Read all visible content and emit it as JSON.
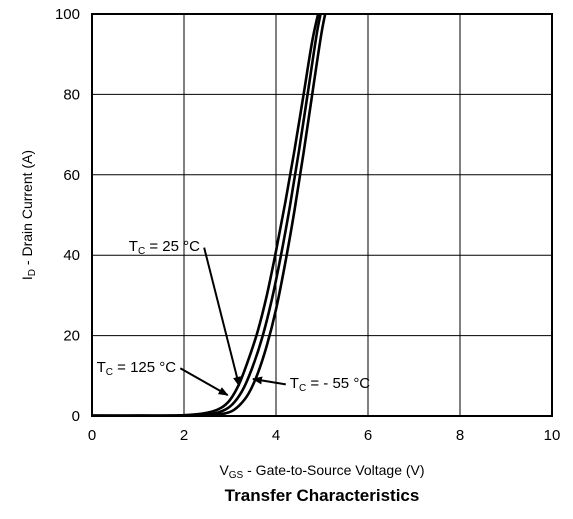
{
  "chart_data": {
    "type": "line",
    "title": "Transfer Characteristics",
    "xlabel": {
      "main": "V",
      "sub": "GS",
      "rest": " - Gate-to-Source Voltage (V)"
    },
    "ylabel": {
      "main": "I",
      "sub": "D",
      "rest": " - Drain Current (A)"
    },
    "xlim": [
      0,
      10
    ],
    "ylim": [
      0,
      100
    ],
    "xticks": [
      0,
      2,
      4,
      6,
      8,
      10
    ],
    "yticks": [
      0,
      20,
      40,
      60,
      80,
      100
    ],
    "grid": true,
    "series": [
      {
        "name": "T_C = 125 °C",
        "label": {
          "main": "T",
          "sub": "C",
          "rest": " = 125 °C"
        },
        "x": [
          0,
          1,
          2,
          2.5,
          2.8,
          3.0,
          3.2,
          3.4,
          3.6,
          3.8,
          4.0,
          4.2,
          4.4,
          4.6,
          4.8,
          5.0
        ],
        "y": [
          0.1,
          0.1,
          0.2,
          0.8,
          2.0,
          4.0,
          8.0,
          14.0,
          21.0,
          30.0,
          41.0,
          53.0,
          66.0,
          80.0,
          94.0,
          104.0
        ]
      },
      {
        "name": "T_C = 25 °C",
        "label": {
          "main": "T",
          "sub": "C",
          "rest": " = 25 °C"
        },
        "x": [
          0,
          1,
          2,
          2.6,
          2.9,
          3.1,
          3.3,
          3.5,
          3.7,
          3.9,
          4.1,
          4.3,
          4.5,
          4.7,
          4.9,
          5.05
        ],
        "y": [
          0.1,
          0.1,
          0.1,
          0.5,
          1.6,
          3.5,
          7.0,
          12.5,
          19.5,
          28.5,
          39.5,
          52.0,
          66.0,
          81.0,
          96.0,
          104.0
        ]
      },
      {
        "name": "T_C = - 55 °C",
        "label": {
          "main": "T",
          "sub": "C",
          "rest": " = - 55 °C"
        },
        "x": [
          0,
          1,
          2,
          2.7,
          3.0,
          3.2,
          3.4,
          3.6,
          3.8,
          4.0,
          4.2,
          4.4,
          4.6,
          4.8,
          5.0,
          5.15
        ],
        "y": [
          0.0,
          0.0,
          0.0,
          0.3,
          1.0,
          2.6,
          5.5,
          10.5,
          17.5,
          26.5,
          38.0,
          51.0,
          65.5,
          81.0,
          96.0,
          104.0
        ]
      }
    ],
    "annotations": [
      {
        "series": 1,
        "text_x": 0.8,
        "text_y": 41,
        "arrow_to": [
          3.2,
          7.5
        ]
      },
      {
        "series": 0,
        "text_x": 0.1,
        "text_y": 11,
        "arrow_to": [
          2.95,
          5.2
        ]
      },
      {
        "series": 2,
        "text_x": 4.3,
        "text_y": 7,
        "arrow_to": [
          3.5,
          9.2
        ]
      }
    ]
  }
}
